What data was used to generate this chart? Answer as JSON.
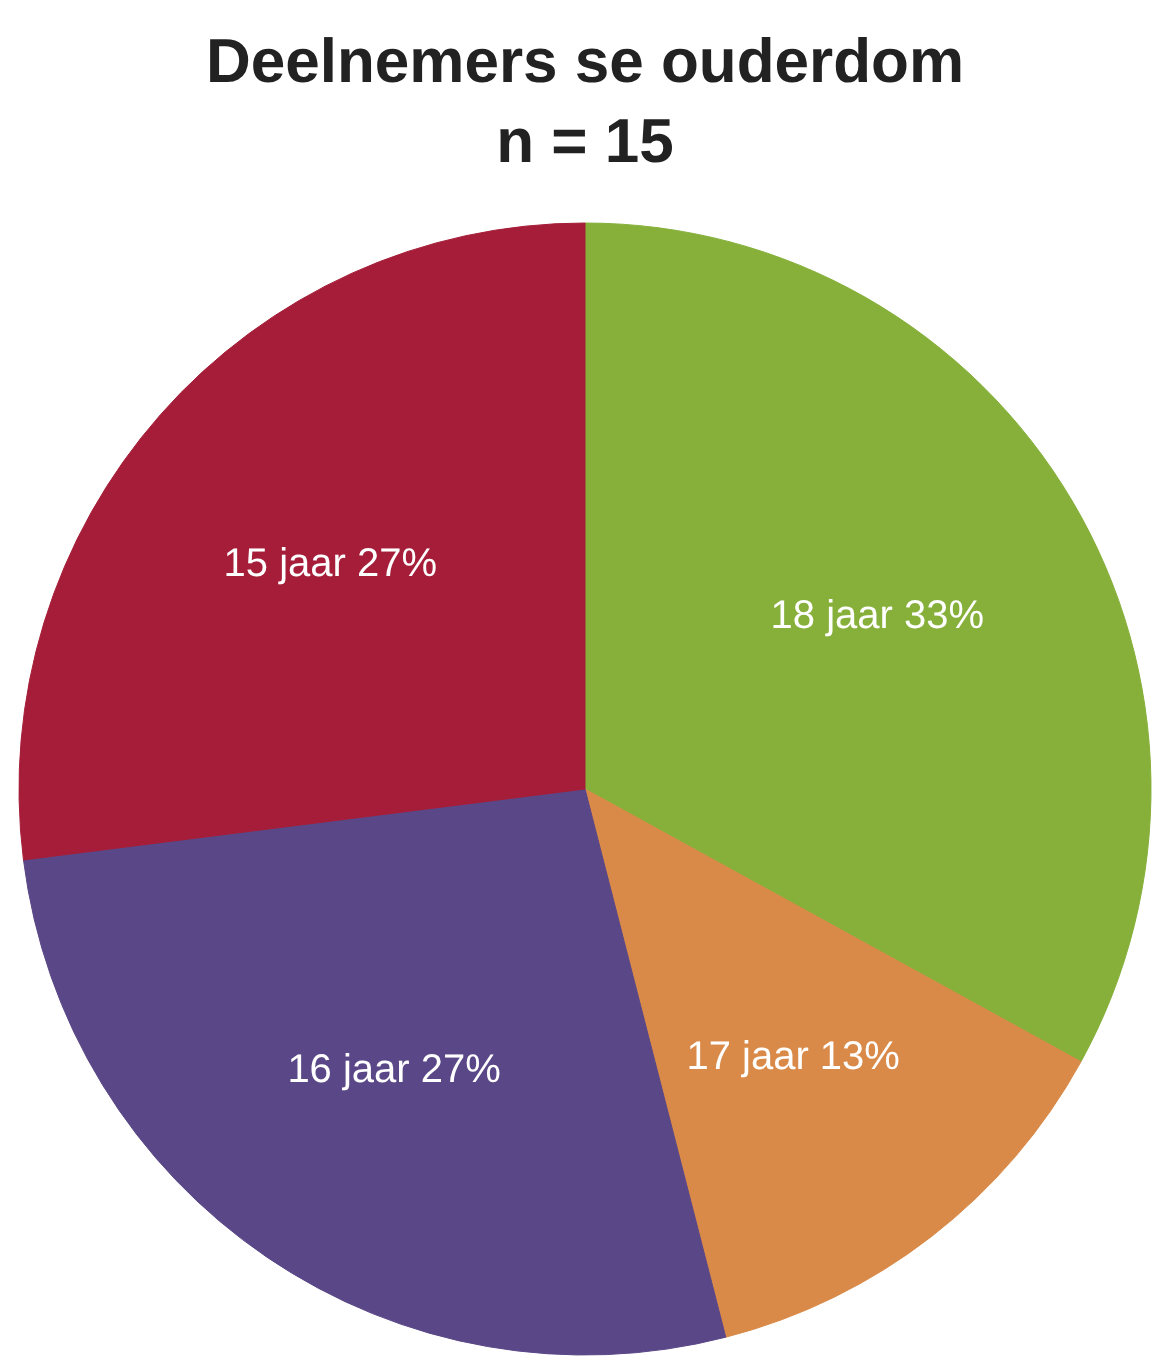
{
  "chart_data": {
    "type": "pie",
    "title": "Deelnemers se ouderdom",
    "subtitle": "n = 15",
    "categories": [
      "18 jaar",
      "17 jaar",
      "16 jaar",
      "15 jaar"
    ],
    "values": [
      33,
      13,
      27,
      27
    ],
    "colors": [
      "#86b03a",
      "#d98a48",
      "#5a4787",
      "#a51d38"
    ],
    "value_labels": [
      "33%",
      "13%",
      "27%",
      "27%"
    ]
  }
}
